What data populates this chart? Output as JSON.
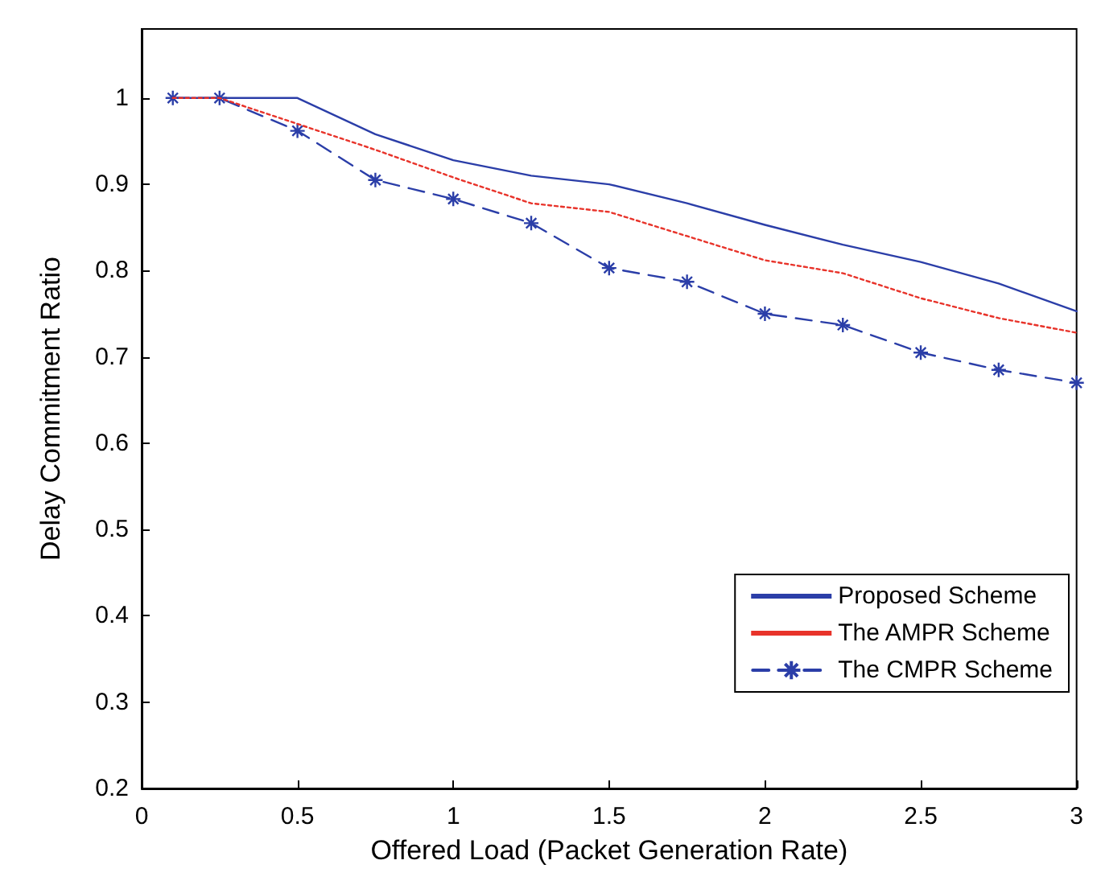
{
  "chart_data": {
    "type": "line",
    "xlabel": "Offered Load (Packet Generation Rate)",
    "ylabel": "Delay Commitment Ratio",
    "x": [
      0.1,
      0.25,
      0.5,
      0.75,
      1,
      1.25,
      1.5,
      1.75,
      2,
      2.25,
      2.5,
      2.75,
      3
    ],
    "series": [
      {
        "name": "Proposed Scheme",
        "color": "#2b3ea8",
        "line_style": "solid",
        "marker": "none",
        "values": [
          1,
          1,
          1,
          0.958,
          0.928,
          0.91,
          0.9,
          0.878,
          0.853,
          0.83,
          0.81,
          0.785,
          0.753
        ]
      },
      {
        "name": "The AMPR Scheme",
        "color": "#e8332a",
        "line_style": "dotted",
        "marker": "none",
        "values": [
          1,
          1,
          0.97,
          0.94,
          0.908,
          0.878,
          0.868,
          0.84,
          0.812,
          0.797,
          0.768,
          0.745,
          0.728
        ]
      },
      {
        "name": "The CMPR Scheme",
        "color": "#2b3ea8",
        "line_style": "dashed",
        "marker": "cross",
        "values": [
          1,
          1,
          0.962,
          0.905,
          0.883,
          0.855,
          0.803,
          0.787,
          0.75,
          0.737,
          0.705,
          0.685,
          0.67
        ]
      }
    ],
    "xlim": [
      0,
      3
    ],
    "xticks": [
      0,
      0.5,
      1,
      1.5,
      2,
      2.5,
      3
    ],
    "ylim": [
      0.2,
      1.08
    ],
    "yticks": [
      0.2,
      0.3,
      0.4,
      0.5,
      0.6,
      0.7,
      0.8,
      0.9,
      1
    ],
    "legend": "bottom right"
  }
}
